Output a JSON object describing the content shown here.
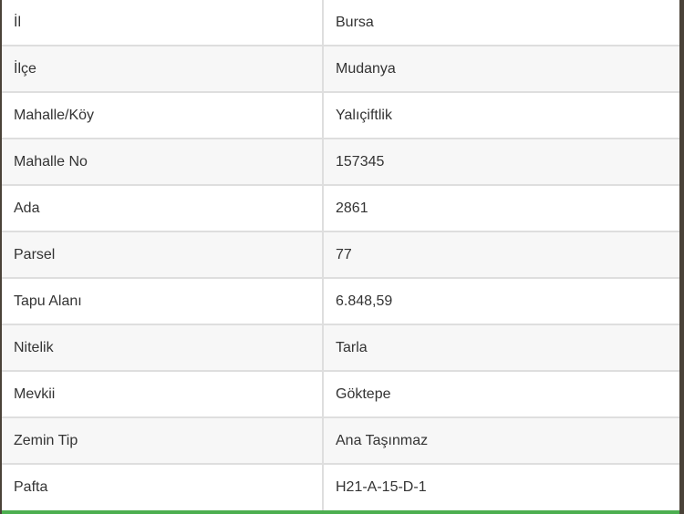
{
  "rows": [
    {
      "label": "İl",
      "value": "Bursa"
    },
    {
      "label": "İlçe",
      "value": "Mudanya"
    },
    {
      "label": "Mahalle/Köy",
      "value": "Yalıçiftlik"
    },
    {
      "label": "Mahalle No",
      "value": "157345"
    },
    {
      "label": "Ada",
      "value": "2861"
    },
    {
      "label": "Parsel",
      "value": "77"
    },
    {
      "label": "Tapu Alanı",
      "value": "6.848,59"
    },
    {
      "label": "Nitelik",
      "value": "Tarla"
    },
    {
      "label": "Mevkii",
      "value": "Göktepe"
    },
    {
      "label": "Zemin Tip",
      "value": "Ana Taşınmaz"
    },
    {
      "label": "Pafta",
      "value": "H21-A-15-D-1"
    }
  ],
  "colors": {
    "accent_bar": "#4caf50",
    "stripe": "#f7f7f7",
    "border": "#dedede"
  }
}
